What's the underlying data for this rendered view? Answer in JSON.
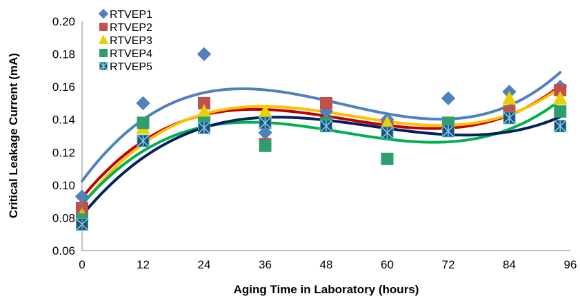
{
  "chart_data": {
    "type": "scatter",
    "xlabel": "Aging Time in Laboratory (hours)",
    "ylabel": "Critical Leakage Current (mA)",
    "xlim": [
      0,
      96
    ],
    "ylim": [
      0.06,
      0.2
    ],
    "xticks": [
      "0",
      "12",
      "24",
      "36",
      "48",
      "60",
      "72",
      "84",
      "96"
    ],
    "yticks": [
      "0.06",
      "0.08",
      "0.10",
      "0.12",
      "0.14",
      "0.16",
      "0.18",
      "0.20"
    ],
    "grid": false,
    "legend_position": "top-left",
    "x": [
      0,
      12,
      24,
      36,
      48,
      60,
      72,
      84,
      94
    ],
    "series": [
      {
        "name": "RTVEP1",
        "marker": "diamond",
        "color": "#4f81bd",
        "trend_color": "#4f81bd",
        "values": [
          0.093,
          0.15,
          0.18,
          0.132,
          0.145,
          0.14,
          0.153,
          0.157,
          0.16
        ]
      },
      {
        "name": "RTVEP2",
        "marker": "square",
        "color": "#c0504d",
        "trend_color": "#c00000",
        "values": [
          0.086,
          0.138,
          0.15,
          0.125,
          0.15,
          0.135,
          0.138,
          0.145,
          0.158
        ]
      },
      {
        "name": "RTVEP3",
        "marker": "triangle",
        "color": "#e6d200",
        "trend_color": "#ffc000",
        "values": [
          0.082,
          0.135,
          0.145,
          0.145,
          0.138,
          0.138,
          0.138,
          0.153,
          0.153
        ]
      },
      {
        "name": "RTVEP4",
        "marker": "square",
        "color": "#2e9e6e",
        "trend_color": "#00b050",
        "values": [
          0.079,
          0.138,
          0.138,
          0.124,
          0.138,
          0.116,
          0.138,
          0.141,
          0.145
        ]
      },
      {
        "name": "RTVEP5",
        "marker": "asterisk-square",
        "color": "#1f4e79",
        "trend_color": "#002060",
        "values": [
          0.076,
          0.127,
          0.135,
          0.138,
          0.136,
          0.132,
          0.133,
          0.141,
          0.136
        ]
      }
    ]
  }
}
